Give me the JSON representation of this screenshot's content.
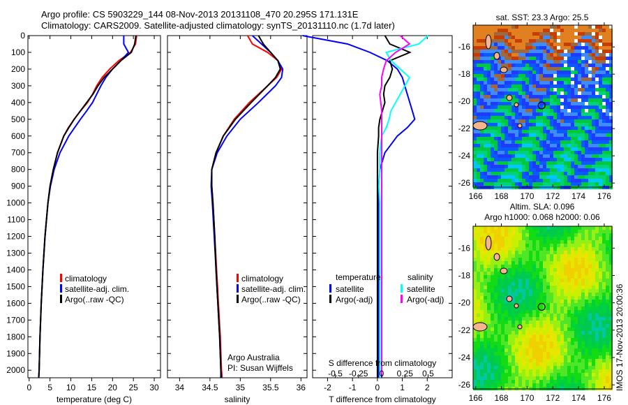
{
  "title": {
    "line1": "Argo profile: CS 5903229_144 08-Nov-2013 20131108_470 20.295S 171.131E",
    "line2": "Climatology: CARS2009. Satellite-adjusted climatology: synTS_20131110.nc (1.7d later)"
  },
  "credit": {
    "line1": "Argo Australia",
    "line2": "PI: Susan Wijffels"
  },
  "timestamp": "IMOS 17-Nov-2013 20:00:36",
  "colors": {
    "climatology": "#ff0000",
    "satellite": "#0000ff",
    "argo": "#000000",
    "s_satellite": "#00ffff",
    "s_argo": "#ff00ff"
  },
  "chart_data": [
    {
      "type": "line",
      "xlabel": "temperature (deg C)",
      "xlim": [
        -0.3,
        31.5
      ],
      "ylim": [
        2045,
        0
      ],
      "xticks": [
        0,
        5,
        10,
        15,
        20,
        25,
        30
      ],
      "yticks": [
        0,
        100,
        200,
        300,
        400,
        500,
        600,
        700,
        800,
        900,
        1000,
        1100,
        1200,
        1300,
        1400,
        1500,
        1600,
        1700,
        1800,
        1900,
        2000
      ],
      "legend": [
        "climatology",
        "satellite-adj. clim.",
        "Argo(..raw -QC)"
      ],
      "depth": [
        0,
        50,
        100,
        150,
        200,
        250,
        300,
        350,
        400,
        450,
        500,
        550,
        600,
        700,
        800,
        900,
        1000,
        1200,
        1400,
        1600,
        1800,
        2000,
        2045
      ],
      "series": [
        {
          "name": "climatology",
          "color": "#ff0000",
          "values": [
            25.8,
            25.5,
            24.3,
            21.5,
            19.3,
            17.5,
            16.2,
            15.2,
            14.0,
            12.3,
            10.8,
            9.4,
            8.3,
            6.8,
            5.8,
            5.0,
            4.5,
            3.8,
            3.3,
            2.9,
            2.6,
            2.4,
            2.3
          ]
        },
        {
          "name": "satellite-adj. clim.",
          "color": "#0000ff",
          "values": [
            22.7,
            22.7,
            23.8,
            22.0,
            20.0,
            18.4,
            17.2,
            16.2,
            15.2,
            13.8,
            12.3,
            10.9,
            9.5,
            7.4,
            6.0,
            5.1,
            4.5,
            3.8,
            3.3,
            2.9,
            2.6,
            2.4,
            2.3
          ]
        },
        {
          "name": "Argo(..raw -QC)",
          "color": "#000000",
          "values": [
            25.6,
            25.3,
            24.5,
            22.0,
            20.0,
            18.0,
            16.5,
            15.3,
            13.8,
            12.3,
            10.8,
            9.5,
            8.3,
            6.8,
            5.8,
            5.0,
            4.5,
            3.8,
            3.3,
            2.9,
            2.6,
            2.4,
            2.3
          ]
        }
      ]
    },
    {
      "type": "line",
      "xlabel": "salinity",
      "xlim": [
        33.8,
        36.1
      ],
      "ylim": [
        2045,
        0
      ],
      "xticks": [
        34,
        34.5,
        35,
        35.5,
        36
      ],
      "legend": [
        "climatology",
        "satellite-adj. clim.",
        "Argo(..raw -QC)"
      ],
      "depth": [
        0,
        50,
        100,
        150,
        200,
        250,
        300,
        400,
        500,
        600,
        700,
        800,
        900,
        1000,
        1200,
        1400,
        1600,
        1800,
        2000,
        2045
      ],
      "series": [
        {
          "name": "climatology",
          "color": "#ff0000",
          "values": [
            35.12,
            35.2,
            35.45,
            35.62,
            35.68,
            35.6,
            35.45,
            35.15,
            34.9,
            34.72,
            34.6,
            34.53,
            34.53,
            34.55,
            34.58,
            34.61,
            34.64,
            34.67,
            34.69,
            34.7
          ]
        },
        {
          "name": "satellite-adj. clim.",
          "color": "#0000ff",
          "values": [
            35.2,
            35.35,
            35.5,
            35.62,
            35.7,
            35.68,
            35.58,
            35.3,
            35.0,
            34.78,
            34.62,
            34.53,
            34.52,
            34.54,
            34.57,
            34.6,
            34.63,
            34.66,
            34.68,
            34.69
          ]
        },
        {
          "name": "Argo(..raw -QC)",
          "color": "#000000",
          "values": [
            35.3,
            35.38,
            35.5,
            35.62,
            35.66,
            35.58,
            35.45,
            35.18,
            34.92,
            34.72,
            34.6,
            34.53,
            34.53,
            34.55,
            34.58,
            34.6,
            34.63,
            34.66,
            34.68,
            34.68
          ]
        }
      ]
    },
    {
      "type": "line",
      "xlabel": "T difference from climatology",
      "xlabel_top": "S difference from climatology",
      "xlim": [
        -2.6,
        3.0
      ],
      "ylim": [
        2045,
        0
      ],
      "xticks": [
        -2,
        -1,
        0,
        1,
        2
      ],
      "s_xticks": [
        "-0.5",
        "-0.25",
        "0",
        "0.25",
        "0.5"
      ],
      "s_xticks_values": [
        -0.5,
        -0.25,
        0,
        0.25,
        0.5
      ],
      "legend": {
        "temperature": "temperature",
        "salinity": "salinity",
        "items": [
          "satellite",
          "Argo(-adj)",
          "satellite",
          "Argo(-adj)"
        ]
      },
      "depth": [
        0,
        50,
        100,
        150,
        200,
        250,
        300,
        350,
        400,
        450,
        500,
        550,
        600,
        700,
        800,
        900,
        1000,
        1200,
        1400,
        1600,
        1800,
        2000,
        2045
      ],
      "series": [
        {
          "name": "T satellite",
          "color": "#0000ff",
          "unit": "T",
          "values": [
            -3.0,
            -1.2,
            -0.3,
            0.4,
            0.8,
            1.0,
            1.1,
            1.2,
            1.3,
            1.4,
            1.5,
            1.2,
            0.8,
            0.3,
            0.1,
            0.05,
            0.05,
            0.05,
            0.05,
            0.05,
            0.05,
            0.05,
            0.05
          ]
        },
        {
          "name": "T Argo(-adj)",
          "color": "#000000",
          "unit": "T",
          "values": [
            0.3,
            0.5,
            1.3,
            0.5,
            0.6,
            0.5,
            0.3,
            0.25,
            0.3,
            0.2,
            0.1,
            0.05,
            0.05,
            0.0,
            0.0,
            0.0,
            0.0,
            0.0,
            0.0,
            0.0,
            0.0,
            0.0,
            0.0
          ]
        },
        {
          "name": "S satellite",
          "color": "#00ffff",
          "unit": "S",
          "values": [
            0.5,
            0.4,
            0.05,
            0.1,
            0.2,
            0.3,
            0.25,
            0.2,
            0.15,
            0.1,
            0.08,
            0.05,
            0.0,
            -0.02,
            -0.02,
            -0.03,
            -0.02,
            -0.02,
            -0.02,
            -0.02,
            -0.02,
            -0.02,
            -0.02
          ]
        },
        {
          "name": "S Argo(-adj)",
          "color": "#ff00ff",
          "unit": "S",
          "values": [
            0.2,
            0.3,
            0.15,
            0.05,
            0.02,
            0.0,
            0.0,
            -0.02,
            -0.01,
            0.0,
            0.0,
            0.0,
            0.0,
            0.0,
            0.0,
            0.0,
            0.0,
            0.0,
            0.0,
            0.0,
            0.0,
            0.0,
            0.0
          ]
        }
      ]
    },
    {
      "type": "heatmap",
      "title": "sat. SST: 23.3 Argo: 25.5",
      "xticks": [
        166,
        168,
        170,
        172,
        174,
        176
      ],
      "yticks": [
        -16,
        -18,
        -20,
        -22,
        -24,
        -26
      ],
      "argo_position": [
        171.131,
        -20.295
      ]
    },
    {
      "type": "heatmap",
      "title1": "Altim. SLA: 0.096",
      "title2": "Argo h1000: 0.068 h2000: 0.06",
      "xticks": [
        166,
        168,
        170,
        172,
        174,
        176
      ],
      "yticks": [
        -16,
        -18,
        -20,
        -22,
        -24,
        -26
      ],
      "argo_position": [
        171.131,
        -20.295
      ]
    }
  ]
}
